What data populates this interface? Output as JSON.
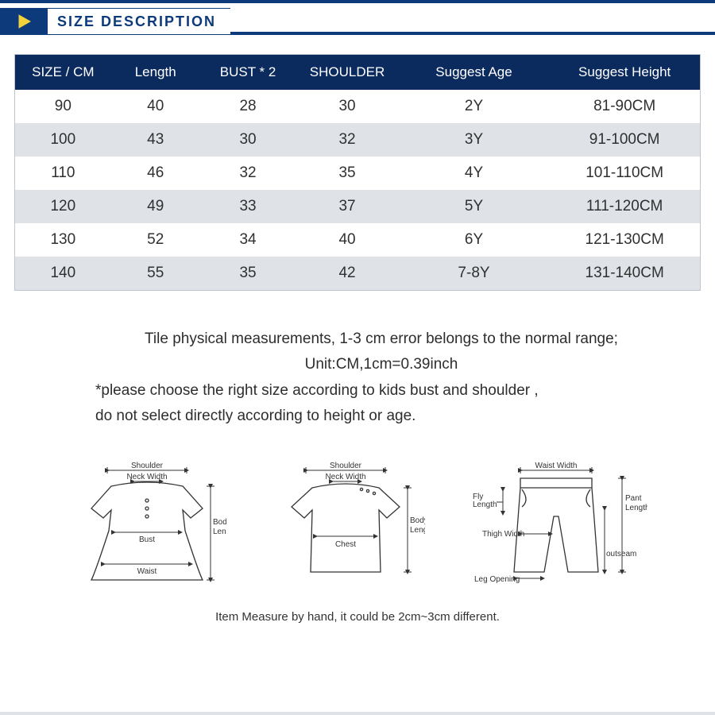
{
  "title": "SIZE DESCRIPTION",
  "colors": {
    "header_bg": "#0b2a5e",
    "header_text": "#ffffff",
    "row_even": "#ffffff",
    "row_odd": "#dfe3e8",
    "accent": "#0d3a7a",
    "play_fill": "#f2d23a",
    "border": "#bfc5cc",
    "text": "#303030"
  },
  "size_table": {
    "columns": [
      "SIZE / CM",
      "Length",
      "BUST * 2",
      "SHOULDER",
      "Suggest Age",
      "Suggest Height"
    ],
    "column_widths_pct": [
      14,
      13,
      14,
      15,
      22,
      22
    ],
    "rows": [
      [
        "90",
        "40",
        "28",
        "30",
        "2Y",
        "81-90CM"
      ],
      [
        "100",
        "43",
        "30",
        "32",
        "3Y",
        "91-100CM"
      ],
      [
        "110",
        "46",
        "32",
        "35",
        "4Y",
        "101-110CM"
      ],
      [
        "120",
        "49",
        "33",
        "37",
        "5Y",
        "111-120CM"
      ],
      [
        "130",
        "52",
        "34",
        "40",
        "6Y",
        "121-130CM"
      ],
      [
        "140",
        "55",
        "35",
        "42",
        "7-8Y",
        "131-140CM"
      ]
    ]
  },
  "notes": {
    "line1": "Tile physical measurements, 1-3 cm error belongs to the normal range;",
    "line2": "Unit:CM,1cm=0.39inch",
    "line3": "*please choose the right size according to kids bust and shoulder ,",
    "line4": "do not select directly according to height or age."
  },
  "diagrams": {
    "dress": {
      "labels": {
        "shoulder": "Shoulder",
        "neck": "Neck Width",
        "bust": "Bust",
        "waist": "Waist",
        "body": "Body\nLength"
      }
    },
    "top": {
      "labels": {
        "shoulder": "Shoulder",
        "neck": "Neck Width",
        "chest": "Chest",
        "body": "Body\nLength"
      }
    },
    "pants": {
      "labels": {
        "waist": "Waist Width",
        "fly": "Fly\nLength",
        "thigh": "Thigh Width",
        "leg": "Leg Opening",
        "outseam": "outseam",
        "pant": "Pant\nLength"
      }
    },
    "caption": "Item Measure by hand, it could be 2cm~3cm different."
  }
}
